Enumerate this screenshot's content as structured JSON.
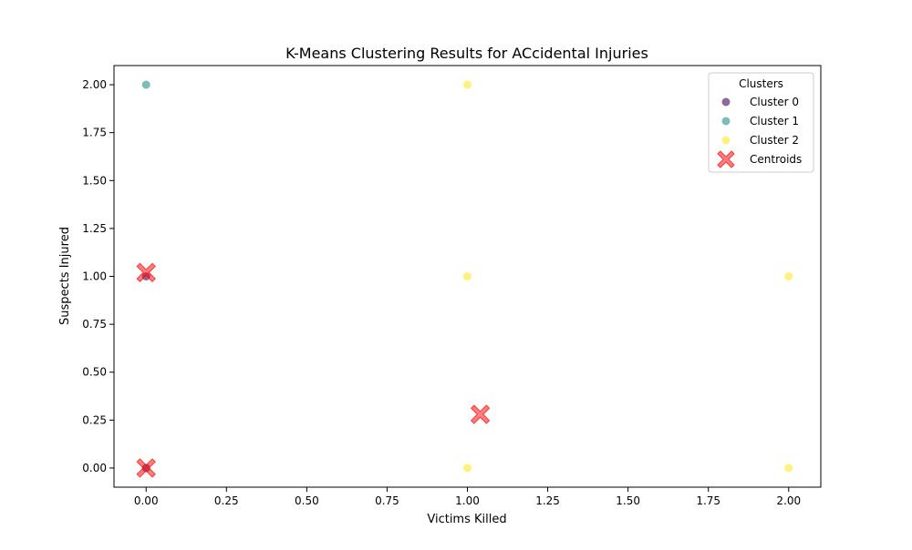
{
  "chart_data": {
    "type": "scatter",
    "title": "K-Means Clustering Results for ACcidental Injuries",
    "xlabel": "Victims Killed",
    "ylabel": "Suspects Injured",
    "xlim": [
      -0.1,
      2.1
    ],
    "ylim": [
      -0.1,
      2.1
    ],
    "xticks": [
      0.0,
      0.25,
      0.5,
      0.75,
      1.0,
      1.25,
      1.5,
      1.75,
      2.0
    ],
    "xtick_labels": [
      "0.00",
      "0.25",
      "0.50",
      "0.75",
      "1.00",
      "1.25",
      "1.50",
      "1.75",
      "2.00"
    ],
    "yticks": [
      0.0,
      0.25,
      0.5,
      0.75,
      1.0,
      1.25,
      1.5,
      1.75,
      2.0
    ],
    "ytick_labels": [
      "0.00",
      "0.25",
      "0.50",
      "0.75",
      "1.00",
      "1.25",
      "1.50",
      "1.75",
      "2.00"
    ],
    "grid": false,
    "legend": {
      "title": "Clusters",
      "placement": "top-right"
    },
    "series": [
      {
        "name": "Cluster 0",
        "color": "#440154",
        "marker": "circle",
        "alpha": 0.6,
        "points": [
          [
            0,
            0
          ],
          [
            0,
            1
          ]
        ]
      },
      {
        "name": "Cluster 1",
        "color": "#21918c",
        "marker": "circle",
        "alpha": 0.6,
        "points": [
          [
            0,
            2
          ]
        ]
      },
      {
        "name": "Cluster 2",
        "color": "#fde725",
        "marker": "circle",
        "alpha": 0.6,
        "points": [
          [
            1,
            2
          ],
          [
            1,
            1
          ],
          [
            1,
            0
          ],
          [
            2,
            1
          ],
          [
            2,
            0
          ]
        ]
      },
      {
        "name": "Centroids",
        "color": "#ff0000",
        "marker": "x",
        "alpha": 0.5,
        "points": [
          [
            0,
            0
          ],
          [
            0,
            1.02
          ],
          [
            1.04,
            0.28
          ]
        ]
      }
    ]
  }
}
